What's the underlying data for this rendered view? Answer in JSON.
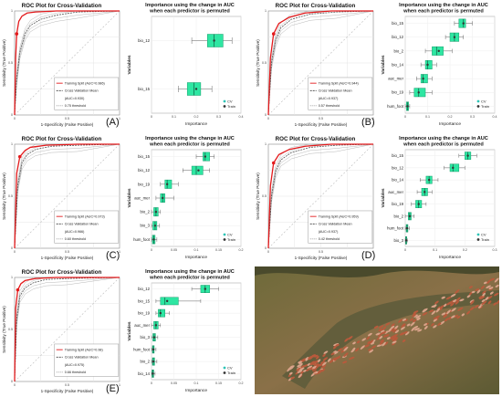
{
  "figure": {
    "panel_labels": [
      "(A)",
      "(B)",
      "(C)",
      "(D)",
      "(E)"
    ],
    "colors": {
      "train_roc": "#e31a1c",
      "cv_roc": "#555555",
      "box_fill": "#2ee6a2",
      "box_stroke": "#1a9e6e",
      "train_point": "#333333",
      "cv_point": "#2ec4b6",
      "photo_water": "#8a7048",
      "photo_bird": "#b85a3c"
    },
    "photo": {
      "description_icon": "water-bird-flock-photo-icon"
    }
  },
  "chart_data": [
    {
      "id": "A-roc",
      "type": "line",
      "title": "ROC Plot for Cross-Validation",
      "xlabel": "1-Specificity (False Positive)",
      "ylabel": "Sensitivity (True Positive)",
      "xlim": [
        0,
        1
      ],
      "ylim": [
        0,
        1
      ],
      "legend": [
        "Training Split (AUC=0.986)",
        "Cross Validation Mean",
        "(AUC=0.930)",
        "0.75 threshold"
      ],
      "series": [
        {
          "name": "Training Split",
          "x": [
            0,
            0.01,
            0.02,
            0.04,
            0.07,
            0.12,
            0.2,
            0.4,
            1
          ],
          "y": [
            0,
            0.55,
            0.78,
            0.9,
            0.95,
            0.98,
            0.99,
            1,
            1
          ]
        },
        {
          "name": "Cross Validation Mean",
          "x": [
            0,
            0.02,
            0.05,
            0.1,
            0.15,
            0.25,
            0.4,
            0.6,
            1
          ],
          "y": [
            0,
            0.35,
            0.6,
            0.78,
            0.86,
            0.92,
            0.96,
            0.99,
            1
          ]
        }
      ]
    },
    {
      "id": "A-imp",
      "type": "box",
      "title": "Importance using the change in AUC",
      "subtitle": "when each predictor is permuted",
      "xlabel": "Importance",
      "ylabel": "Variables",
      "xlim": [
        0,
        0.4
      ],
      "xticks": [
        "0",
        "0.1",
        "0.2",
        "0.3",
        "0.4"
      ],
      "legend": [
        "CV",
        "Train"
      ],
      "categories": [
        "bio_12",
        "bio_15"
      ],
      "boxes": [
        {
          "min": 0.18,
          "q1": 0.25,
          "median": 0.28,
          "q3": 0.32,
          "max": 0.36,
          "train": 0.28
        },
        {
          "min": 0.12,
          "q1": 0.16,
          "median": 0.19,
          "q3": 0.22,
          "max": 0.27,
          "train": 0.2
        }
      ]
    },
    {
      "id": "B-roc",
      "type": "line",
      "title": "ROC Plot for Cross-Validation",
      "xlabel": "1-Specificity (False Positive)",
      "ylabel": "Sensitivity (True Positive)",
      "xlim": [
        0,
        1
      ],
      "ylim": [
        0,
        1
      ],
      "legend": [
        "Training Split (AUC=0.944)",
        "Cross Validation Mean",
        "(AUC=0.937)",
        "0.57 threshold"
      ],
      "series": [
        {
          "name": "Training Split",
          "x": [
            0,
            0.02,
            0.05,
            0.1,
            0.2,
            0.35,
            0.6,
            1
          ],
          "y": [
            0,
            0.55,
            0.78,
            0.88,
            0.94,
            0.98,
            1,
            1
          ]
        },
        {
          "name": "Cross Validation Mean",
          "x": [
            0,
            0.03,
            0.07,
            0.12,
            0.22,
            0.4,
            0.65,
            1
          ],
          "y": [
            0,
            0.5,
            0.72,
            0.84,
            0.92,
            0.97,
            0.99,
            1
          ]
        }
      ]
    },
    {
      "id": "B-imp",
      "type": "box",
      "title": "Importance using the change in AUC",
      "subtitle": "when each predictor is permuted",
      "xlabel": "Importance",
      "ylabel": "Variables",
      "xlim": [
        0,
        0.4
      ],
      "xticks": [
        "0",
        "0.1",
        "0.2",
        "0.3",
        "0.4"
      ],
      "legend": [
        "CV",
        "Train"
      ],
      "categories": [
        "bio_15",
        "bio_12",
        "bio_2",
        "bio_14",
        "auc_mer",
        "bio_19",
        "hum_foot"
      ],
      "boxes": [
        {
          "min": 0.22,
          "q1": 0.24,
          "median": 0.26,
          "q3": 0.27,
          "max": 0.3,
          "train": 0.26
        },
        {
          "min": 0.18,
          "q1": 0.2,
          "median": 0.22,
          "q3": 0.24,
          "max": 0.26,
          "train": 0.22
        },
        {
          "min": 0.09,
          "q1": 0.12,
          "median": 0.14,
          "q3": 0.17,
          "max": 0.21,
          "train": 0.15
        },
        {
          "min": 0.07,
          "q1": 0.09,
          "median": 0.1,
          "q3": 0.12,
          "max": 0.14,
          "train": 0.1
        },
        {
          "min": 0.05,
          "q1": 0.07,
          "median": 0.08,
          "q3": 0.1,
          "max": 0.12,
          "train": 0.08
        },
        {
          "min": 0.02,
          "q1": 0.04,
          "median": 0.06,
          "q3": 0.09,
          "max": 0.12,
          "train": 0.06
        },
        {
          "min": 0.0,
          "q1": 0.005,
          "median": 0.01,
          "q3": 0.015,
          "max": 0.02,
          "train": 0.01
        }
      ]
    },
    {
      "id": "C-roc",
      "type": "line",
      "title": "ROC Plot for Cross-Validation",
      "xlabel": "1-Specificity (False Positive)",
      "ylabel": "Sensitivity (True Positive)",
      "xlim": [
        0,
        1
      ],
      "ylim": [
        0,
        1
      ],
      "legend": [
        "Training Split (AUC=0.973)",
        "Cross Validation Mean",
        "(AUC=0.966)",
        "0.60 threshold"
      ],
      "series": [
        {
          "name": "Training Split",
          "x": [
            0,
            0.02,
            0.05,
            0.1,
            0.15,
            0.3,
            0.6,
            1
          ],
          "y": [
            0,
            0.72,
            0.88,
            0.94,
            0.97,
            0.99,
            1,
            1
          ]
        },
        {
          "name": "Cross Validation Mean",
          "x": [
            0,
            0.03,
            0.07,
            0.12,
            0.2,
            0.35,
            0.6,
            1
          ],
          "y": [
            0,
            0.6,
            0.82,
            0.9,
            0.95,
            0.98,
            0.99,
            1
          ]
        }
      ]
    },
    {
      "id": "C-imp",
      "type": "box",
      "title": "Importance using the change in AUC",
      "subtitle": "when each predictor is permuted",
      "xlabel": "Importance",
      "ylabel": "Variables",
      "xlim": [
        0,
        0.2
      ],
      "xticks": [
        "0",
        "0.05",
        "0.1",
        "0.15",
        "0.2"
      ],
      "legend": [
        "CV",
        "Train"
      ],
      "categories": [
        "bio_15",
        "bio_12",
        "bio_19",
        "auc_mer",
        "bio_2",
        "bio_3",
        "hum_foot"
      ],
      "boxes": [
        {
          "min": 0.1,
          "q1": 0.115,
          "median": 0.12,
          "q3": 0.13,
          "max": 0.14,
          "train": 0.12
        },
        {
          "min": 0.07,
          "q1": 0.09,
          "median": 0.1,
          "q3": 0.115,
          "max": 0.13,
          "train": 0.105
        },
        {
          "min": 0.02,
          "q1": 0.03,
          "median": 0.035,
          "q3": 0.045,
          "max": 0.06,
          "train": 0.035
        },
        {
          "min": 0.01,
          "q1": 0.02,
          "median": 0.025,
          "q3": 0.03,
          "max": 0.05,
          "train": 0.025
        },
        {
          "min": 0.0,
          "q1": 0.005,
          "median": 0.01,
          "q3": 0.015,
          "max": 0.02,
          "train": 0.01
        },
        {
          "min": 0.0,
          "q1": 0.003,
          "median": 0.008,
          "q3": 0.012,
          "max": 0.018,
          "train": 0.008
        },
        {
          "min": 0.0,
          "q1": 0.002,
          "median": 0.005,
          "q3": 0.008,
          "max": 0.012,
          "train": 0.005
        }
      ]
    },
    {
      "id": "D-roc",
      "type": "line",
      "title": "ROC Plot for Cross-Validation",
      "xlabel": "1-Specificity (False Positive)",
      "ylabel": "Sensitivity (True Positive)",
      "xlim": [
        0,
        1
      ],
      "ylim": [
        0,
        1
      ],
      "legend": [
        "Training Split (AUC=0.959)",
        "Cross Validation Mean",
        "(AUC=0.937)",
        "0.42 threshold"
      ],
      "series": [
        {
          "name": "Training Split",
          "x": [
            0,
            0.02,
            0.05,
            0.1,
            0.2,
            0.35,
            0.6,
            1
          ],
          "y": [
            0,
            0.6,
            0.82,
            0.9,
            0.95,
            0.98,
            1,
            1
          ]
        },
        {
          "name": "Cross Validation Mean",
          "x": [
            0,
            0.03,
            0.07,
            0.12,
            0.22,
            0.4,
            0.65,
            1
          ],
          "y": [
            0,
            0.5,
            0.74,
            0.85,
            0.92,
            0.97,
            0.99,
            1
          ]
        }
      ]
    },
    {
      "id": "D-imp",
      "type": "box",
      "title": "Importance using the change in AUC",
      "subtitle": "when each predictor is permuted",
      "xlabel": "Importance",
      "ylabel": "Variables",
      "xlim": [
        0,
        0.3
      ],
      "xticks": [
        "0",
        "0.1",
        "0.2",
        "0.3"
      ],
      "legend": [
        "CV",
        "Train"
      ],
      "categories": [
        "bio_15",
        "bio_12",
        "bio_14",
        "auc_mer",
        "bio_19",
        "bio_2",
        "hum_foot",
        "bio_3"
      ],
      "boxes": [
        {
          "min": 0.18,
          "q1": 0.2,
          "median": 0.21,
          "q3": 0.22,
          "max": 0.24,
          "train": 0.21
        },
        {
          "min": 0.13,
          "q1": 0.15,
          "median": 0.16,
          "q3": 0.18,
          "max": 0.2,
          "train": 0.16
        },
        {
          "min": 0.05,
          "q1": 0.07,
          "median": 0.08,
          "q3": 0.09,
          "max": 0.11,
          "train": 0.08
        },
        {
          "min": 0.04,
          "q1": 0.055,
          "median": 0.065,
          "q3": 0.075,
          "max": 0.09,
          "train": 0.065
        },
        {
          "min": 0.02,
          "q1": 0.035,
          "median": 0.045,
          "q3": 0.055,
          "max": 0.07,
          "train": 0.045
        },
        {
          "min": 0.0,
          "q1": 0.01,
          "median": 0.015,
          "q3": 0.02,
          "max": 0.03,
          "train": 0.015
        },
        {
          "min": 0.0,
          "q1": 0.003,
          "median": 0.006,
          "q3": 0.009,
          "max": 0.014,
          "train": 0.006
        },
        {
          "min": 0.0,
          "q1": 0.001,
          "median": 0.003,
          "q3": 0.005,
          "max": 0.008,
          "train": 0.003
        }
      ]
    },
    {
      "id": "E-roc",
      "type": "line",
      "title": "ROC Plot for Cross-Validation",
      "xlabel": "1-Specificity (False Positive)",
      "ylabel": "Sensitivity (True Positive)",
      "xlim": [
        0,
        1
      ],
      "ylim": [
        0,
        1
      ],
      "legend": [
        "Training Split (AUC=0.98)",
        "Cross Validation Mean",
        "(AUC=0.975)",
        "0.66 threshold"
      ],
      "series": [
        {
          "name": "Training Split",
          "x": [
            0,
            0.01,
            0.03,
            0.06,
            0.1,
            0.2,
            0.4,
            1
          ],
          "y": [
            0,
            0.7,
            0.88,
            0.94,
            0.97,
            0.99,
            1,
            1
          ]
        },
        {
          "name": "Cross Validation Mean",
          "x": [
            0,
            0.02,
            0.05,
            0.1,
            0.18,
            0.3,
            0.5,
            1
          ],
          "y": [
            0,
            0.6,
            0.82,
            0.9,
            0.95,
            0.98,
            0.99,
            1
          ]
        }
      ]
    },
    {
      "id": "E-imp",
      "type": "box",
      "title": "Importance using the change in AUC",
      "subtitle": "when each predictor is permuted",
      "xlabel": "Importance",
      "ylabel": "Variables",
      "xlim": [
        0,
        0.2
      ],
      "xticks": [
        "0",
        "0.05",
        "0.1",
        "0.15",
        "0.2"
      ],
      "legend": [
        "CV",
        "Train"
      ],
      "categories": [
        "bio_12",
        "bio_15",
        "bio_19",
        "auc_mer",
        "bio_3",
        "hum_foot",
        "bio_2",
        "bio_14"
      ],
      "boxes": [
        {
          "min": 0.09,
          "q1": 0.11,
          "median": 0.12,
          "q3": 0.13,
          "max": 0.15,
          "train": 0.12
        },
        {
          "min": 0.01,
          "q1": 0.02,
          "median": 0.03,
          "q3": 0.06,
          "max": 0.11,
          "train": 0.035
        },
        {
          "min": 0.01,
          "q1": 0.015,
          "median": 0.02,
          "q3": 0.03,
          "max": 0.04,
          "train": 0.02
        },
        {
          "min": 0.0,
          "q1": 0.005,
          "median": 0.01,
          "q3": 0.015,
          "max": 0.02,
          "train": 0.01
        },
        {
          "min": 0.0,
          "q1": 0.003,
          "median": 0.006,
          "q3": 0.009,
          "max": 0.014,
          "train": 0.006
        },
        {
          "min": 0.0,
          "q1": 0.002,
          "median": 0.004,
          "q3": 0.006,
          "max": 0.01,
          "train": 0.004
        },
        {
          "min": 0.0,
          "q1": 0.002,
          "median": 0.004,
          "q3": 0.007,
          "max": 0.012,
          "train": 0.004
        },
        {
          "min": 0.0,
          "q1": 0.001,
          "median": 0.003,
          "q3": 0.005,
          "max": 0.008,
          "train": 0.003
        }
      ]
    }
  ]
}
